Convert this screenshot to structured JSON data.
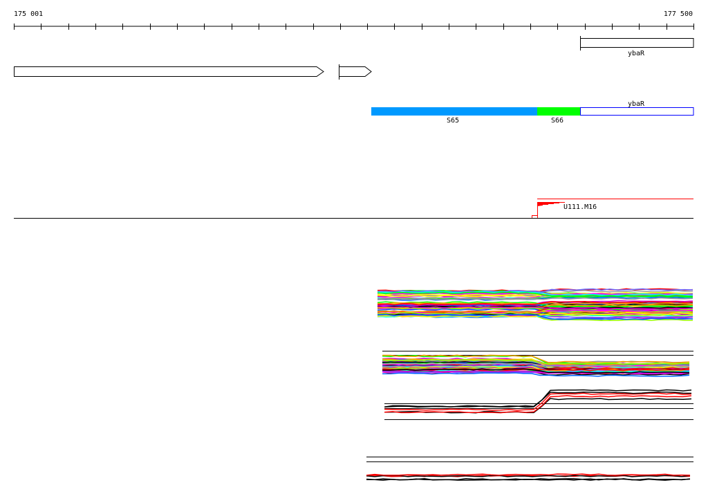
{
  "ruler": {
    "start_label": "175 001",
    "end_label": "177 500",
    "start": 175001,
    "end": 177500
  },
  "genes": {
    "top_gene_label": "ybaR",
    "arrow_genes": [
      {
        "strand": "+"
      },
      {
        "strand": "+"
      }
    ]
  },
  "segments": [
    {
      "label": "S65",
      "color": "#0099ff"
    },
    {
      "label": "S66",
      "color": "#00ff00"
    },
    {
      "label": "ybaR",
      "color": "#ffffff",
      "border": "#0000ff"
    }
  ],
  "feature": {
    "label": "U111.M16",
    "color": "#ff0000"
  },
  "track_colors": [
    "#ff0000",
    "#000000",
    "#ff00ff",
    "#00ffff",
    "#ffff00",
    "#00ff00",
    "#0066ff",
    "#999999",
    "#ff9900",
    "#cc00cc",
    "#99ff00",
    "#6666ff"
  ]
}
